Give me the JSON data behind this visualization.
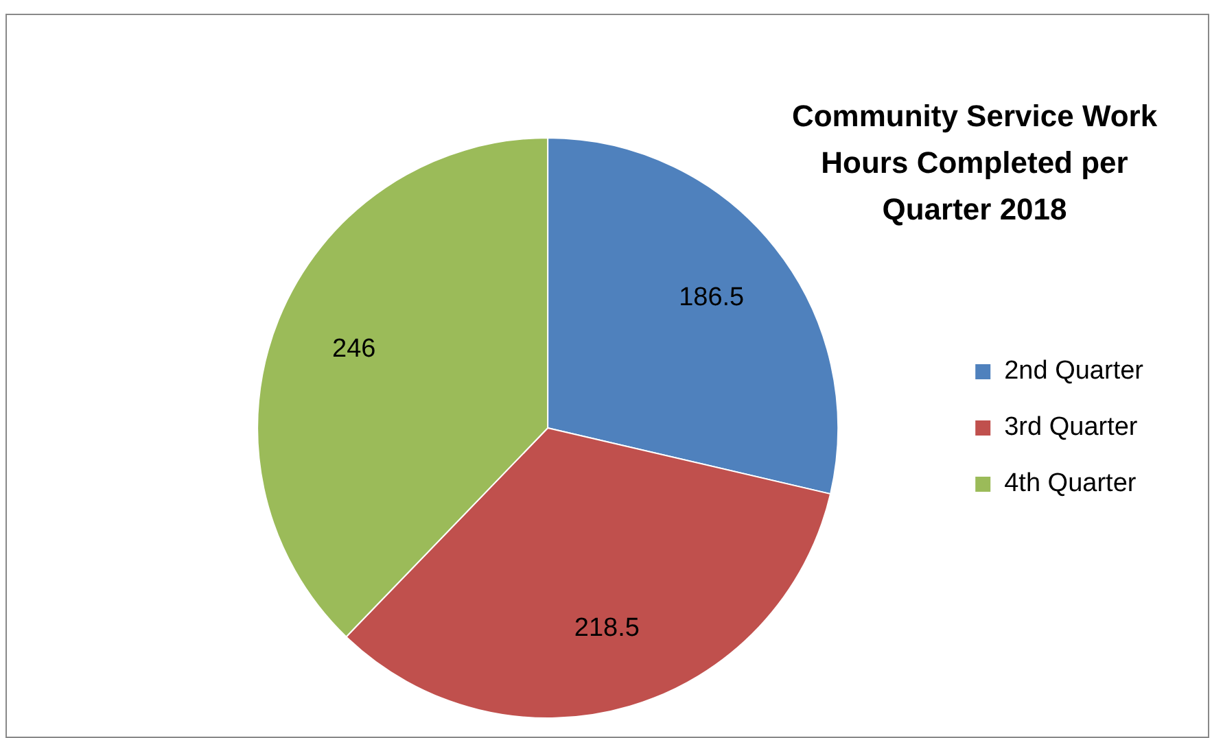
{
  "chart_data": {
    "type": "pie",
    "title": "Community Service Work Hours Completed per Quarter 2018",
    "categories": [
      "2nd Quarter",
      "3rd Quarter",
      "4th Quarter"
    ],
    "values": [
      186.5,
      218.5,
      246
    ],
    "colors": [
      "#4f81bd",
      "#c0504d",
      "#9bbb59"
    ],
    "data_labels": true,
    "legend": "right"
  }
}
